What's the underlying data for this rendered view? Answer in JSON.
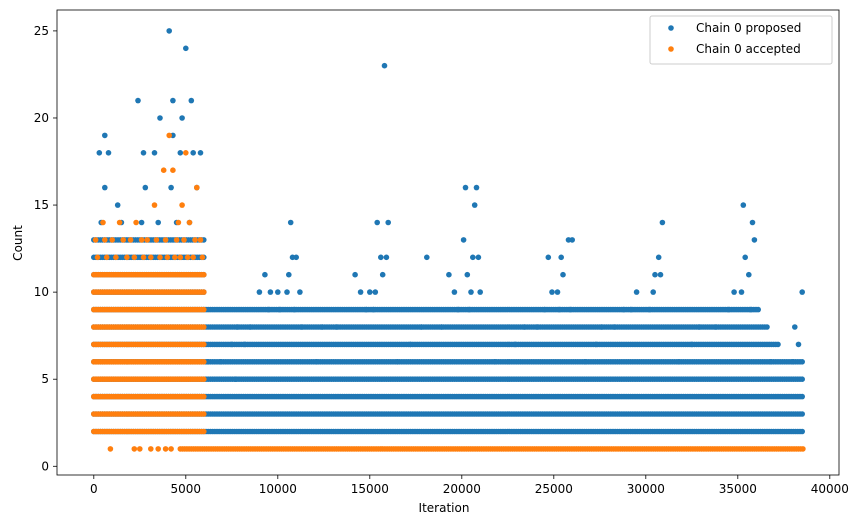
{
  "chart_data": {
    "type": "scatter",
    "xlabel": "Iteration",
    "ylabel": "Count",
    "xlim": [
      -2000,
      40500
    ],
    "ylim": [
      -0.5,
      26.2
    ],
    "xticks": [
      0,
      5000,
      10000,
      15000,
      20000,
      25000,
      30000,
      35000,
      40000
    ],
    "yticks": [
      0,
      5,
      10,
      15,
      20,
      25
    ],
    "grid": false,
    "legend_position": "top-right",
    "series": [
      {
        "name": "Chain 0 proposed",
        "color": "#1f77b4",
        "bands": [
          {
            "y": 2,
            "x": [
              0,
              38600
            ]
          },
          {
            "y": 3,
            "x": [
              0,
              38600
            ]
          },
          {
            "y": 4,
            "x": [
              0,
              38600
            ]
          },
          {
            "y": 5,
            "x": [
              0,
              38600
            ]
          },
          {
            "y": 6,
            "x": [
              0,
              38500
            ]
          },
          {
            "y": 7,
            "x": [
              0,
              37200
            ]
          },
          {
            "y": 8,
            "x": [
              0,
              36700
            ]
          },
          {
            "y": 9,
            "x": [
              0,
              36200
            ]
          },
          {
            "y": 10,
            "x": [
              0,
              6000
            ]
          },
          {
            "y": 11,
            "x": [
              0,
              6000
            ]
          },
          {
            "y": 12,
            "x": [
              0,
              6000
            ]
          },
          {
            "y": 13,
            "x": [
              0,
              6000
            ]
          }
        ],
        "points": [
          [
            4100,
            25
          ],
          [
            5000,
            24
          ],
          [
            15800,
            23
          ],
          [
            2400,
            21
          ],
          [
            4300,
            21
          ],
          [
            5300,
            21
          ],
          [
            3600,
            20
          ],
          [
            4800,
            20
          ],
          [
            4300,
            19
          ],
          [
            600,
            19
          ],
          [
            300,
            18
          ],
          [
            800,
            18
          ],
          [
            2700,
            18
          ],
          [
            3300,
            18
          ],
          [
            4700,
            18
          ],
          [
            5400,
            18
          ],
          [
            5800,
            18
          ],
          [
            20200,
            16
          ],
          [
            20800,
            16
          ],
          [
            600,
            16
          ],
          [
            2800,
            16
          ],
          [
            4200,
            16
          ],
          [
            5600,
            16
          ],
          [
            20700,
            15
          ],
          [
            35300,
            15
          ],
          [
            1300,
            15
          ],
          [
            10700,
            14
          ],
          [
            15400,
            14
          ],
          [
            16000,
            14
          ],
          [
            30900,
            14
          ],
          [
            35800,
            14
          ],
          [
            400,
            14
          ],
          [
            1500,
            14
          ],
          [
            2600,
            14
          ],
          [
            3500,
            14
          ],
          [
            4500,
            14
          ],
          [
            5200,
            14
          ],
          [
            20100,
            13
          ],
          [
            25800,
            13
          ],
          [
            26000,
            13
          ],
          [
            35900,
            13
          ],
          [
            10800,
            12
          ],
          [
            11000,
            12
          ],
          [
            15600,
            12
          ],
          [
            15900,
            12
          ],
          [
            18100,
            12
          ],
          [
            20600,
            12
          ],
          [
            20900,
            12
          ],
          [
            24700,
            12
          ],
          [
            25400,
            12
          ],
          [
            30700,
            12
          ],
          [
            35400,
            12
          ],
          [
            9300,
            11
          ],
          [
            10600,
            11
          ],
          [
            14200,
            11
          ],
          [
            15700,
            11
          ],
          [
            19300,
            11
          ],
          [
            20300,
            11
          ],
          [
            25500,
            11
          ],
          [
            30500,
            11
          ],
          [
            30800,
            11
          ],
          [
            35600,
            11
          ],
          [
            9000,
            10
          ],
          [
            9600,
            10
          ],
          [
            10000,
            10
          ],
          [
            10500,
            10
          ],
          [
            11200,
            10
          ],
          [
            14500,
            10
          ],
          [
            15000,
            10
          ],
          [
            15300,
            10
          ],
          [
            19600,
            10
          ],
          [
            20500,
            10
          ],
          [
            21000,
            10
          ],
          [
            24900,
            10
          ],
          [
            25200,
            10
          ],
          [
            29500,
            10
          ],
          [
            30400,
            10
          ],
          [
            34800,
            10
          ],
          [
            35200,
            10
          ],
          [
            38500,
            10
          ],
          [
            9500,
            9
          ],
          [
            10100,
            9
          ],
          [
            10900,
            9
          ],
          [
            14800,
            9
          ],
          [
            15200,
            9
          ],
          [
            19800,
            9
          ],
          [
            20400,
            9
          ],
          [
            24500,
            9
          ],
          [
            25300,
            9
          ],
          [
            25900,
            9
          ],
          [
            28800,
            9
          ],
          [
            29200,
            9
          ],
          [
            30200,
            9
          ],
          [
            34500,
            9
          ],
          [
            35700,
            9
          ],
          [
            7800,
            8
          ],
          [
            8500,
            8
          ],
          [
            11300,
            8
          ],
          [
            12400,
            8
          ],
          [
            13200,
            8
          ],
          [
            17800,
            8
          ],
          [
            18900,
            8
          ],
          [
            23400,
            8
          ],
          [
            24100,
            8
          ],
          [
            27600,
            8
          ],
          [
            28300,
            8
          ],
          [
            32900,
            8
          ],
          [
            33800,
            8
          ],
          [
            38100,
            8
          ],
          [
            38300,
            7
          ],
          [
            38000,
            6
          ],
          [
            6200,
            6
          ],
          [
            6900,
            6
          ],
          [
            7500,
            7
          ],
          [
            7700,
            5
          ],
          [
            8200,
            7
          ],
          [
            12100,
            6
          ],
          [
            16500,
            6
          ],
          [
            17200,
            7
          ],
          [
            21800,
            6
          ],
          [
            22900,
            7
          ],
          [
            26700,
            6
          ],
          [
            27300,
            7
          ],
          [
            31800,
            6
          ],
          [
            32500,
            7
          ],
          [
            36800,
            6
          ]
        ]
      },
      {
        "name": "Chain 0 accepted",
        "color": "#ff7f0e",
        "bands": [
          {
            "y": 1,
            "x": [
              4700,
              38600
            ]
          },
          {
            "y": 2,
            "x": [
              0,
              6000
            ]
          },
          {
            "y": 3,
            "x": [
              0,
              6000
            ]
          },
          {
            "y": 4,
            "x": [
              0,
              6000
            ]
          },
          {
            "y": 5,
            "x": [
              0,
              6000
            ]
          },
          {
            "y": 6,
            "x": [
              0,
              6000
            ]
          },
          {
            "y": 7,
            "x": [
              0,
              6000
            ]
          },
          {
            "y": 8,
            "x": [
              0,
              6000
            ]
          },
          {
            "y": 9,
            "x": [
              0,
              6000
            ]
          },
          {
            "y": 10,
            "x": [
              0,
              6000
            ]
          },
          {
            "y": 11,
            "x": [
              0,
              6000
            ]
          }
        ],
        "points": [
          [
            900,
            1
          ],
          [
            2200,
            1
          ],
          [
            2500,
            1
          ],
          [
            3100,
            1
          ],
          [
            3500,
            1
          ],
          [
            3900,
            1
          ],
          [
            4200,
            1
          ],
          [
            5000,
            18
          ],
          [
            4100,
            19
          ],
          [
            4300,
            17
          ],
          [
            3800,
            17
          ],
          [
            5600,
            16
          ],
          [
            3300,
            15
          ],
          [
            4800,
            15
          ],
          [
            500,
            14
          ],
          [
            1400,
            14
          ],
          [
            2300,
            14
          ],
          [
            4600,
            14
          ],
          [
            5200,
            14
          ],
          [
            100,
            13
          ],
          [
            600,
            13
          ],
          [
            1000,
            13
          ],
          [
            1600,
            13
          ],
          [
            2000,
            13
          ],
          [
            2600,
            13
          ],
          [
            2900,
            13
          ],
          [
            3400,
            13
          ],
          [
            3900,
            13
          ],
          [
            4500,
            13
          ],
          [
            4900,
            13
          ],
          [
            5500,
            13
          ],
          [
            5800,
            13
          ],
          [
            200,
            12
          ],
          [
            700,
            12
          ],
          [
            1200,
            12
          ],
          [
            1800,
            12
          ],
          [
            2200,
            12
          ],
          [
            2700,
            12
          ],
          [
            3100,
            12
          ],
          [
            3600,
            12
          ],
          [
            4000,
            12
          ],
          [
            4400,
            12
          ],
          [
            4700,
            12
          ],
          [
            5100,
            12
          ],
          [
            5400,
            12
          ],
          [
            5900,
            12
          ]
        ]
      }
    ]
  }
}
